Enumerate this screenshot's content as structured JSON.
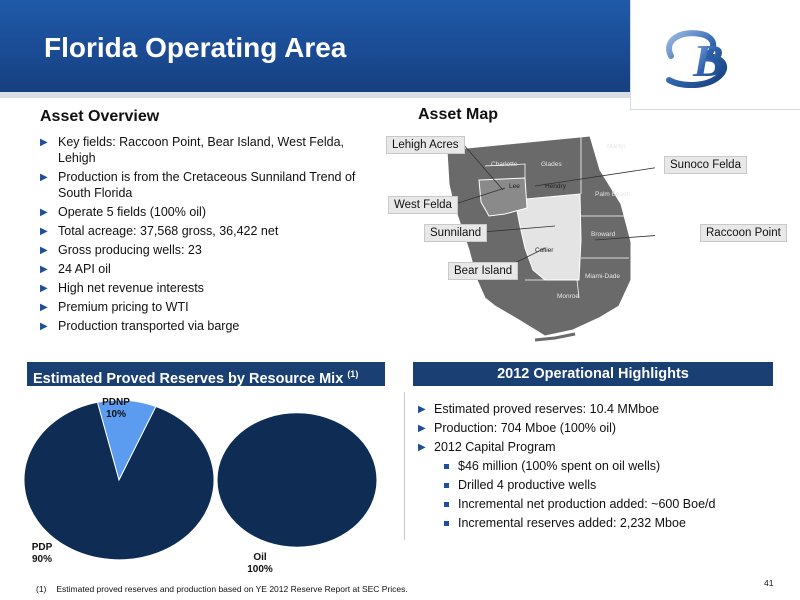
{
  "header": {
    "title": "Florida Operating Area"
  },
  "logo": {
    "icon": "company-monogram-logo",
    "text": "B"
  },
  "overview": {
    "heading": "Asset Overview",
    "items": [
      "Key fields: Raccoon Point, Bear Island, West Felda, Lehigh",
      "Production is from the Cretaceous Sunniland Trend of South Florida",
      "Operate 5 fields (100% oil)",
      "Total acreage: 37,568 gross, 36,422 net",
      "Gross producing wells: 23",
      "24 API oil",
      "High net revenue interests",
      "Premium pricing to WTI",
      "Production transported via barge"
    ]
  },
  "map": {
    "heading": "Asset Map",
    "fields": {
      "lehigh": "Lehigh Acres",
      "sunoco": "Sunoco Felda",
      "west_felda": "West Felda",
      "sunniland": "Sunniland",
      "raccoon": "Raccoon Point",
      "bear": "Bear Island"
    },
    "counties": {
      "charlotte": "Charlotte",
      "glades": "Glades",
      "martin": "Martin",
      "lee": "Lee",
      "hendry": "Hendry",
      "palm_beach": "Palm Beach",
      "broward": "Broward",
      "collier": "Collier",
      "miami_dade": "Miami-Dade",
      "monroe": "Monroe"
    }
  },
  "reserves": {
    "heading": "Estimated Proved Reserves by Resource Mix",
    "footnote_marker": "(1)"
  },
  "chart_data": [
    {
      "type": "pie",
      "slices": [
        {
          "label": "PDNP",
          "value": 10,
          "display": "10%",
          "color": "#5b9bf0"
        },
        {
          "label": "PDP",
          "value": 90,
          "display": "90%",
          "color": "#0e2c54"
        }
      ]
    },
    {
      "type": "pie",
      "slices": [
        {
          "label": "Oil",
          "value": 100,
          "display": "100%",
          "color": "#0e2c54"
        }
      ]
    }
  ],
  "highlights": {
    "heading": "2012 Operational Highlights",
    "items": [
      "Estimated proved reserves: 10.4 MMboe",
      "Production: 704 Mboe (100% oil)",
      "2012 Capital Program"
    ],
    "subitems": [
      "$46 million (100% spent on oil wells)",
      "Drilled 4 productive wells",
      "Incremental net production added: ~600 Boe/d",
      "Incremental reserves added: 2,232 Mboe"
    ]
  },
  "footer": {
    "footnote_num": "(1)",
    "footnote_text": "Estimated proved reserves and production based on YE 2012 Reserve Report at SEC Prices.",
    "page": "41"
  }
}
